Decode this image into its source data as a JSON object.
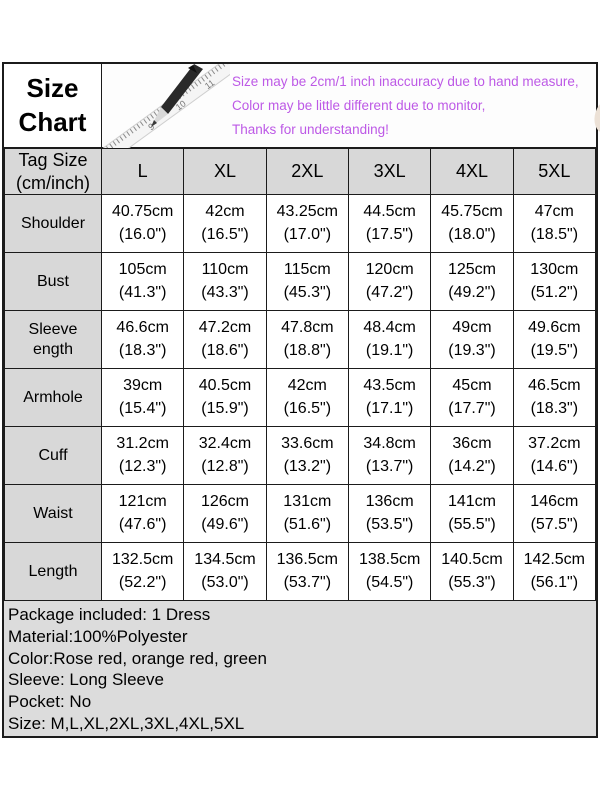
{
  "header": {
    "title_line1": "Size",
    "title_line2": "Chart",
    "notes": [
      "Size may be 2cm/1 inch inaccuracy due to hand measure,",
      "Color may be little different due to monitor,",
      "Thanks for understanding!"
    ],
    "icons": [
      "pencil-ruler-image",
      "hand-ruler-image"
    ]
  },
  "colors": {
    "note_purple": "#bd59e6",
    "accent_red": "#ff0000",
    "cell_gray": "#d8d8d8",
    "details_gray": "#dcdcdc",
    "border_black": "#1b1b1b",
    "ruler_yellow": "#e9d94c"
  },
  "table": {
    "corner": [
      "Tag Size",
      "(cm/inch)"
    ],
    "columns": [
      "L",
      "XL",
      "2XL",
      "3XL",
      "4XL",
      "5XL"
    ],
    "rows": [
      {
        "label": "Shoulder",
        "cells": [
          {
            "cm": "40.75cm",
            "in": "(16.0\")"
          },
          {
            "cm": "42cm",
            "in": "(16.5\")"
          },
          {
            "cm": "43.25cm",
            "in": "(17.0\")"
          },
          {
            "cm": "44.5cm",
            "in": "(17.5\")"
          },
          {
            "cm": "45.75cm",
            "in": "(18.0\")"
          },
          {
            "cm": "47cm",
            "in": "(18.5\")"
          }
        ]
      },
      {
        "label": "Bust",
        "cells": [
          {
            "cm": "105cm",
            "in": "(41.3\")"
          },
          {
            "cm": "110cm",
            "in": "(43.3\")"
          },
          {
            "cm": "115cm",
            "in": "(45.3\")"
          },
          {
            "cm": "120cm",
            "in": "(47.2\")"
          },
          {
            "cm": "125cm",
            "in": "(49.2\")"
          },
          {
            "cm": "130cm",
            "in": "(51.2\")"
          }
        ]
      },
      {
        "label": "Sleeve ength",
        "cells": [
          {
            "cm": "46.6cm",
            "in": "(18.3\")"
          },
          {
            "cm": "47.2cm",
            "in": "(18.6\")"
          },
          {
            "cm": "47.8cm",
            "in": "(18.8\")"
          },
          {
            "cm": "48.4cm",
            "in": "(19.1\")"
          },
          {
            "cm": "49cm",
            "in": "(19.3\")"
          },
          {
            "cm": "49.6cm",
            "in": "(19.5\")"
          }
        ]
      },
      {
        "label": "Armhole",
        "cells": [
          {
            "cm": "39cm",
            "in": "(15.4\")"
          },
          {
            "cm": "40.5cm",
            "in": "(15.9\")"
          },
          {
            "cm": "42cm",
            "in": "(16.5\")"
          },
          {
            "cm": "43.5cm",
            "in": "(17.1\")"
          },
          {
            "cm": "45cm",
            "in": "(17.7\")"
          },
          {
            "cm": "46.5cm",
            "in": "(18.3\")"
          }
        ]
      },
      {
        "label": "Cuff",
        "cells": [
          {
            "cm": "31.2cm",
            "in": "(12.3\")"
          },
          {
            "cm": "32.4cm",
            "in": "(12.8\")"
          },
          {
            "cm": "33.6cm",
            "in": "(13.2\")"
          },
          {
            "cm": "34.8cm",
            "in": "(13.7\")"
          },
          {
            "cm": "36cm",
            "in": "(14.2\")"
          },
          {
            "cm": "37.2cm",
            "in": "(14.6\")"
          }
        ]
      },
      {
        "label": "Waist",
        "cells": [
          {
            "cm": "121cm",
            "in": "(47.6\")"
          },
          {
            "cm": "126cm",
            "in": "(49.6\")"
          },
          {
            "cm": "131cm",
            "in": "(51.6\")"
          },
          {
            "cm": "136cm",
            "in": "(53.5\")"
          },
          {
            "cm": "141cm",
            "in": "(55.5\")"
          },
          {
            "cm": "146cm",
            "in": "(57.5\")"
          }
        ]
      },
      {
        "label": "Length",
        "cells": [
          {
            "cm": "132.5cm",
            "in": "(52.2\")"
          },
          {
            "cm": "134.5cm",
            "in": "(53.0\")"
          },
          {
            "cm": "136.5cm",
            "in": "(53.7\")"
          },
          {
            "cm": "138.5cm",
            "in": "(54.5\")"
          },
          {
            "cm": "140.5cm",
            "in": "(55.3\")"
          },
          {
            "cm": "142.5cm",
            "in": "(56.1\")"
          }
        ]
      }
    ]
  },
  "details": [
    "Package included: 1 Dress",
    "Material:100%Polyester",
    "Color:Rose red, orange red, green",
    "Sleeve: Long Sleeve",
    "Pocket: No",
    "Size: M,L,XL,2XL,3XL,4XL,5XL"
  ]
}
